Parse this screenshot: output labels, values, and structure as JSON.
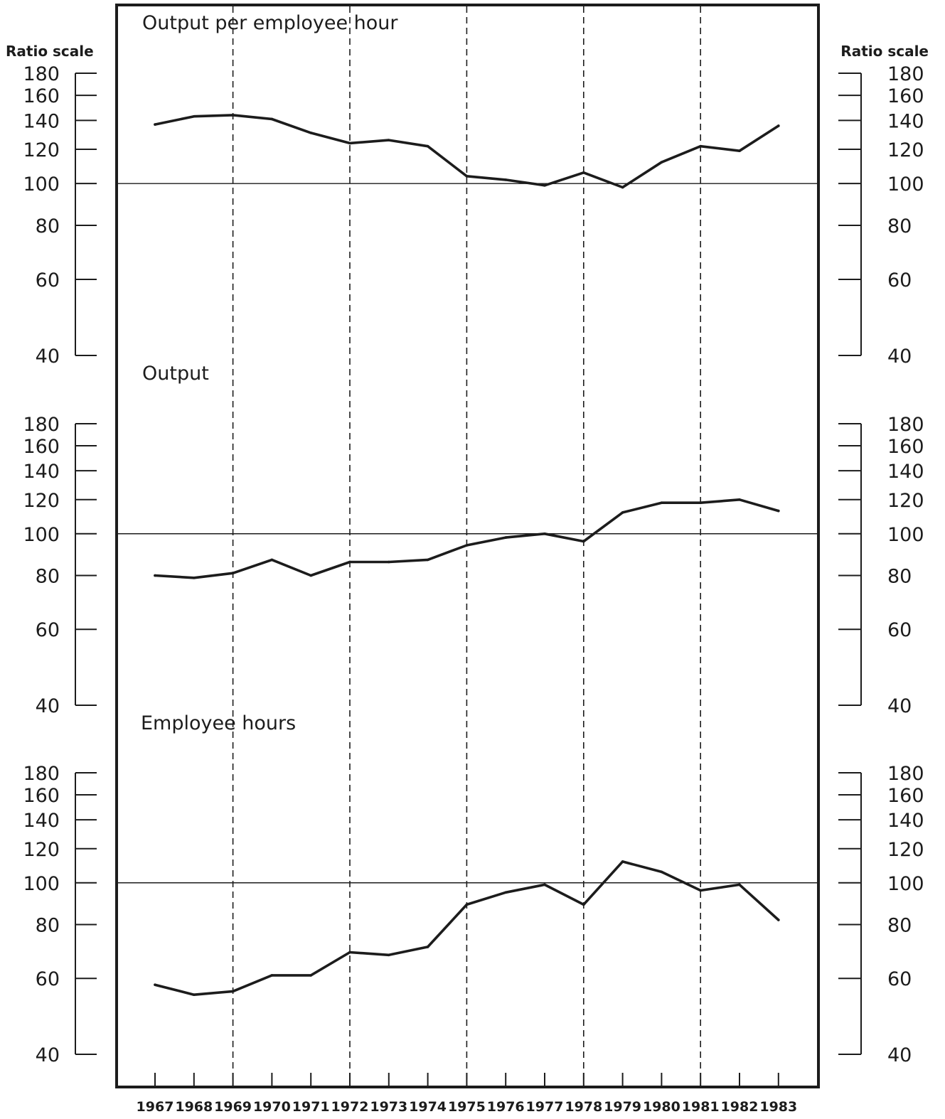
{
  "axis_label_left": "Ratio scale",
  "axis_label_right": "Ratio scale",
  "chart_data": [
    {
      "type": "line",
      "title": "Output per employee hour",
      "y_scale": "log",
      "ylim": [
        40,
        180
      ],
      "y_ticks": [
        40,
        60,
        80,
        100,
        120,
        140,
        160,
        180
      ],
      "reference_line": 100,
      "x": [
        1967,
        1968,
        1969,
        1970,
        1971,
        1972,
        1973,
        1974,
        1975,
        1976,
        1977,
        1978,
        1979,
        1980,
        1981,
        1982,
        1983
      ],
      "values": [
        137,
        143,
        144,
        141,
        131,
        124,
        126,
        122,
        104,
        102,
        99,
        106,
        98,
        112,
        122,
        119,
        136
      ]
    },
    {
      "type": "line",
      "title": "Output",
      "y_scale": "log",
      "ylim": [
        40,
        180
      ],
      "y_ticks": [
        40,
        60,
        80,
        100,
        120,
        140,
        160,
        180
      ],
      "reference_line": 100,
      "x": [
        1967,
        1968,
        1969,
        1970,
        1971,
        1972,
        1973,
        1974,
        1975,
        1976,
        1977,
        1978,
        1979,
        1980,
        1981,
        1982,
        1983
      ],
      "values": [
        80,
        79,
        81,
        87,
        80,
        86,
        86,
        87,
        94,
        98,
        100,
        96,
        112,
        118,
        118,
        120,
        113
      ]
    },
    {
      "type": "line",
      "title": "Employee hours",
      "y_scale": "log",
      "ylim": [
        40,
        180
      ],
      "y_ticks": [
        40,
        60,
        80,
        100,
        120,
        140,
        160,
        180
      ],
      "reference_line": 100,
      "x": [
        1967,
        1968,
        1969,
        1970,
        1971,
        1972,
        1973,
        1974,
        1975,
        1976,
        1977,
        1978,
        1979,
        1980,
        1981,
        1982,
        1983
      ],
      "values": [
        58,
        55,
        56,
        61,
        61,
        69,
        68,
        71,
        89,
        95,
        99,
        89,
        112,
        106,
        96,
        99,
        82
      ]
    }
  ],
  "x_tick_labels": [
    "1967",
    "1968",
    "1969",
    "1970",
    "1971",
    "1972",
    "1973",
    "1974",
    "1975",
    "1976",
    "1977",
    "1978",
    "1979",
    "1980",
    "1981",
    "1982",
    "1983"
  ],
  "dashed_years": [
    1969,
    1972,
    1975,
    1978,
    1981
  ],
  "colors": {
    "ink": "#1c1c1c",
    "background": "#ffffff"
  }
}
